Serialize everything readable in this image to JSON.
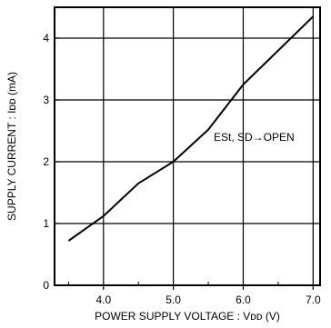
{
  "chart_data": {
    "type": "line",
    "title": "",
    "xlabel": "POWER SUPPLY  VOLTAGE : Vᴅᴅ  (V)",
    "ylabel": "SUPPLY  CURRENT : Iᴅᴅ  (mA)",
    "xlim": [
      3.3,
      7.1
    ],
    "ylim": [
      0,
      4.5
    ],
    "x_ticks": [
      4.0,
      5.0,
      6.0,
      7.0
    ],
    "x_tick_labels": [
      "4.0",
      "5.0",
      "6.0",
      "7.0"
    ],
    "y_ticks": [
      0,
      1,
      2,
      3,
      4
    ],
    "y_tick_labels": [
      "0",
      "1",
      "2",
      "3",
      "4"
    ],
    "grid": true,
    "annotation": "ESt,  SD→OPEN",
    "series": [
      {
        "x": [
          3.5,
          4.0,
          4.5,
          5.0,
          5.5,
          6.0,
          6.5,
          7.0
        ],
        "y": [
          0.72,
          1.12,
          1.65,
          2.0,
          2.52,
          3.25,
          3.8,
          4.35
        ]
      }
    ]
  }
}
